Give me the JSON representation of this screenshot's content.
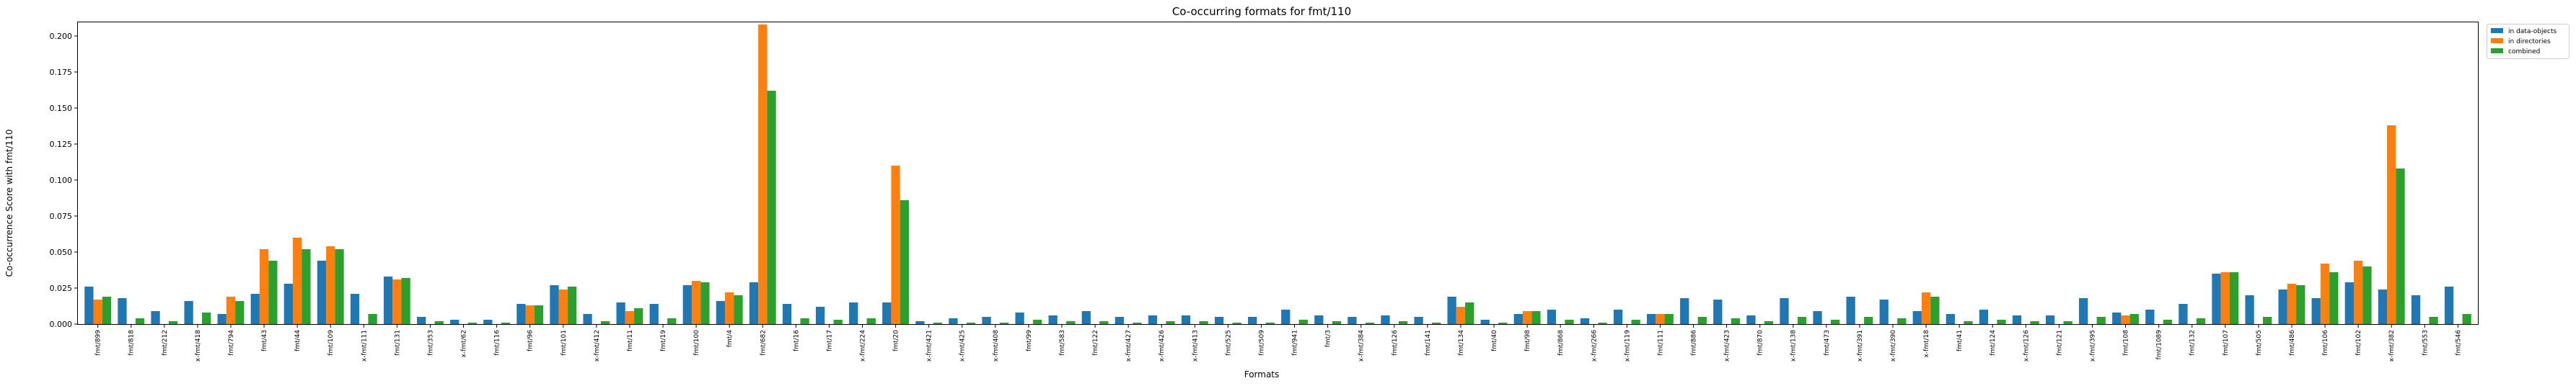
{
  "chart_data": {
    "type": "bar",
    "title": "Co-occurring formats for fmt/110",
    "xlabel": "Formats",
    "ylabel": "Co-occurrence Score with fmt/110",
    "ylim": [
      0,
      0.21
    ],
    "yticks": [
      "0.000",
      "0.025",
      "0.050",
      "0.075",
      "0.100",
      "0.125",
      "0.150",
      "0.175",
      "0.200"
    ],
    "grid": false,
    "legend_position": "top-right (outside plot)",
    "colors": {
      "in data-objects": "#1f77b4",
      "in directories": "#ff7f0e",
      "combined": "#2ca02c"
    },
    "categories": [
      "fmt/899",
      "fmt/818",
      "fmt/212",
      "x-fmt/418",
      "fmt/794",
      "fmt/43",
      "fmt/44",
      "fmt/109",
      "x-fmt/111",
      "fmt/131",
      "fmt/353",
      "x-fmt/62",
      "fmt/116",
      "fmt/96",
      "fmt/101",
      "x-fmt/412",
      "fmt/11",
      "fmt/19",
      "fmt/100",
      "fmt/4",
      "fmt/682",
      "fmt/16",
      "fmt/17",
      "x-fmt/224",
      "fmt/20",
      "x-fmt/421",
      "x-fmt/425",
      "x-fmt/408",
      "fmt/99",
      "fmt/583",
      "fmt/122",
      "x-fmt/427",
      "x-fmt/426",
      "x-fmt/413",
      "fmt/525",
      "fmt/509",
      "fmt/941",
      "fmt/3",
      "x-fmt/384",
      "fmt/126",
      "fmt/141",
      "fmt/134",
      "fmt/40",
      "fmt/98",
      "fmt/868",
      "x-fmt/266",
      "x-fmt/119",
      "fmt/111",
      "fmt/886",
      "x-fmt/423",
      "fmt/870",
      "x-fmt/138",
      "fmt/473",
      "x-fmt/391",
      "x-fmt/390",
      "x-fmt/18",
      "fmt/41",
      "fmt/124",
      "x-fmt/126",
      "fmt/121",
      "x-fmt/395",
      "fmt/108",
      "fmt/1089",
      "fmt/132",
      "fmt/107",
      "fmt/505",
      "fmt/486",
      "fmt/106",
      "fmt/102",
      "x-fmt/382",
      "fmt/553",
      "fmt/546"
    ],
    "series": [
      {
        "name": "in data-objects",
        "values": [
          0.026,
          0.018,
          0.009,
          0.016,
          0.007,
          0.021,
          0.028,
          0.044,
          0.021,
          0.033,
          0.005,
          0.003,
          0.003,
          0.014,
          0.027,
          0.007,
          0.015,
          0.014,
          0.027,
          0.016,
          0.029,
          0.014,
          0.012,
          0.015,
          0.015,
          0.002,
          0.004,
          0.005,
          0.008,
          0.006,
          0.009,
          0.005,
          0.006,
          0.006,
          0.005,
          0.005,
          0.01,
          0.006,
          0.005,
          0.006,
          0.005,
          0.019,
          0.003,
          0.007,
          0.01,
          0.004,
          0.01,
          0.007,
          0.018,
          0.017,
          0.006,
          0.018,
          0.009,
          0.019,
          0.017,
          0.009,
          0.007,
          0.01,
          0.006,
          0.006,
          0.018,
          0.008,
          0.01,
          0.014,
          0.035,
          0.02,
          0.024,
          0.018,
          0.029,
          0.024,
          0.02,
          0.026
        ]
      },
      {
        "name": "in directories",
        "values": [
          0.017,
          0,
          0,
          0,
          0.019,
          0.052,
          0.06,
          0.054,
          0,
          0.031,
          0,
          0,
          0,
          0.013,
          0.024,
          0,
          0.009,
          0,
          0.03,
          0.022,
          0.208,
          0,
          0,
          0,
          0.11,
          0,
          0,
          0,
          0,
          0,
          0,
          0,
          0,
          0,
          0,
          0,
          0,
          0,
          0,
          0,
          0,
          0.012,
          0,
          0.009,
          0,
          0,
          0,
          0.007,
          0,
          0,
          0,
          0,
          0,
          0,
          0,
          0.022,
          0,
          0,
          0,
          0,
          0,
          0.006,
          0,
          0,
          0.036,
          0,
          0.028,
          0.042,
          0.044,
          0.138,
          0,
          0
        ]
      },
      {
        "name": "combined",
        "values": [
          0.019,
          0.004,
          0.002,
          0.008,
          0.016,
          0.044,
          0.052,
          0.052,
          0.007,
          0.032,
          0.002,
          0.001,
          0.001,
          0.013,
          0.026,
          0.002,
          0.011,
          0.004,
          0.029,
          0.02,
          0.162,
          0.004,
          0.003,
          0.004,
          0.086,
          0.001,
          0.001,
          0.001,
          0.003,
          0.002,
          0.002,
          0.001,
          0.002,
          0.002,
          0.001,
          0.001,
          0.003,
          0.002,
          0.001,
          0.002,
          0.001,
          0.015,
          0.001,
          0.009,
          0.003,
          0.001,
          0.003,
          0.007,
          0.005,
          0.004,
          0.002,
          0.005,
          0.003,
          0.005,
          0.004,
          0.019,
          0.002,
          0.003,
          0.002,
          0.002,
          0.005,
          0.007,
          0.003,
          0.004,
          0.036,
          0.005,
          0.027,
          0.036,
          0.04,
          0.108,
          0.005,
          0.007
        ]
      }
    ]
  }
}
